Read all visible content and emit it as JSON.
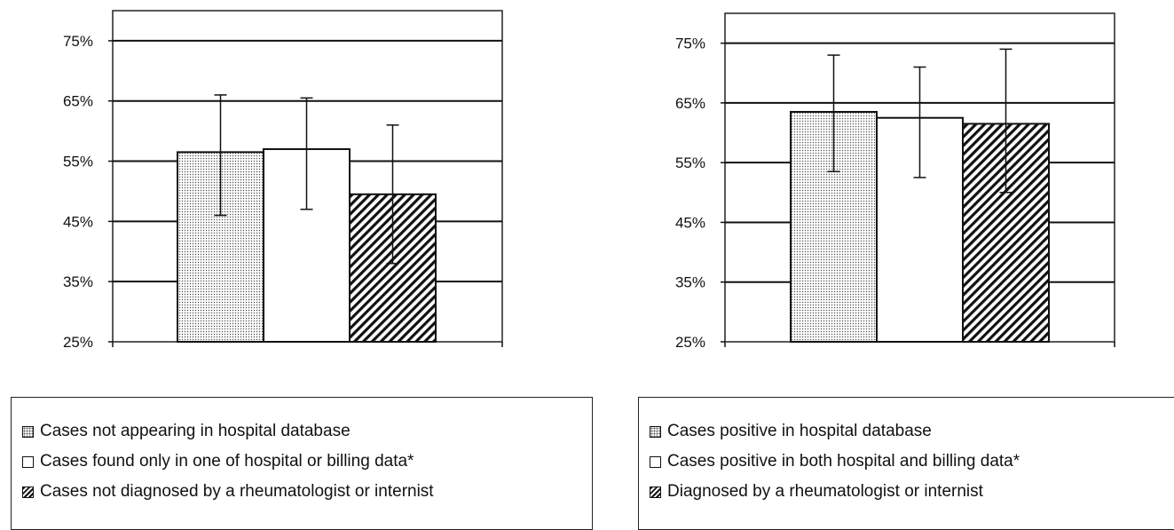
{
  "chart_data": [
    {
      "type": "bar",
      "ylim": [
        25,
        80
      ],
      "yticks": [
        25,
        35,
        45,
        55,
        65,
        75
      ],
      "ytick_labels": [
        "25%",
        "35%",
        "45%",
        "55%",
        "65%",
        "75%"
      ],
      "grid": true,
      "series": [
        {
          "name": "Cases not appearing in hospital database",
          "pattern": "dotted",
          "value": 56.5,
          "error_low": 46,
          "error_high": 66
        },
        {
          "name": "Cases found only in one of hospital or billing data*",
          "pattern": "white",
          "value": 57,
          "error_low": 47,
          "error_high": 65.5
        },
        {
          "name": "Cases not diagnosed by a rheumatologist or internist",
          "pattern": "hatched",
          "value": 49.5,
          "error_low": 38,
          "error_high": 61
        }
      ],
      "legend_position": "bottom"
    },
    {
      "type": "bar",
      "ylim": [
        25,
        80
      ],
      "yticks": [
        25,
        35,
        45,
        55,
        65,
        75
      ],
      "ytick_labels": [
        "25%",
        "35%",
        "45%",
        "55%",
        "65%",
        "75%"
      ],
      "grid": true,
      "series": [
        {
          "name": "Cases positive in hospital database",
          "pattern": "dotted",
          "value": 63.5,
          "error_low": 53.5,
          "error_high": 73
        },
        {
          "name": "Cases positive in both hospital and billing data*",
          "pattern": "white",
          "value": 62.5,
          "error_low": 52.5,
          "error_high": 71
        },
        {
          "name": "Diagnosed by a rheumatologist or internist",
          "pattern": "hatched",
          "value": 61.5,
          "error_low": 50,
          "error_high": 74
        }
      ],
      "legend_position": "bottom"
    }
  ]
}
